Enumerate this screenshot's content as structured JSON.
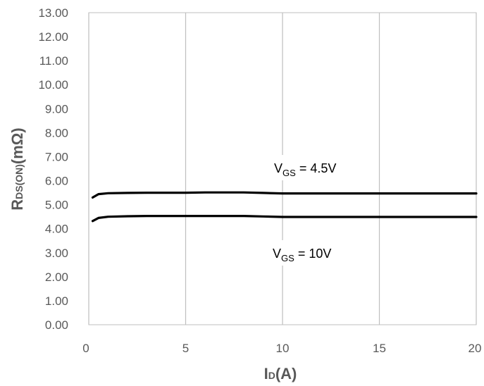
{
  "chart_data": {
    "type": "line",
    "xlabel": {
      "main": "I",
      "sub": "D",
      "rest": "(A)"
    },
    "ylabel": {
      "main": "R",
      "sub": "DS(ON)",
      "rest": "(mΩ)"
    },
    "xlim": [
      0,
      20
    ],
    "ylim": [
      0,
      13
    ],
    "x_ticks": [
      0,
      5,
      10,
      15,
      20
    ],
    "x_tick_labels": [
      "0",
      "5",
      "10",
      "15",
      "20"
    ],
    "y_ticks": [
      0,
      1,
      2,
      3,
      4,
      5,
      6,
      7,
      8,
      9,
      10,
      11,
      12,
      13
    ],
    "y_tick_labels": [
      "0.00",
      "1.00",
      "2.00",
      "3.00",
      "4.00",
      "5.00",
      "6.00",
      "7.00",
      "8.00",
      "9.00",
      "10.00",
      "11.00",
      "12.00",
      "13.00"
    ],
    "grid": {
      "x": true,
      "y": false
    },
    "colors": {
      "line": "#000000",
      "grid": "#bfbfbf",
      "text": "#595959"
    },
    "series": [
      {
        "x": [
          0.2,
          0.5,
          1,
          2,
          3,
          4,
          5,
          6,
          7,
          8,
          9,
          10,
          11,
          12,
          13,
          14,
          15,
          16,
          17,
          18,
          19,
          20
        ],
        "y": [
          5.3,
          5.44,
          5.48,
          5.49,
          5.5,
          5.5,
          5.5,
          5.51,
          5.51,
          5.51,
          5.49,
          5.47,
          5.47,
          5.47,
          5.47,
          5.47,
          5.47,
          5.47,
          5.47,
          5.47,
          5.47,
          5.47
        ]
      },
      {
        "x": [
          0.2,
          0.5,
          1,
          2,
          3,
          4,
          5,
          6,
          7,
          8,
          9,
          10,
          11,
          12,
          13,
          14,
          15,
          16,
          17,
          18,
          19,
          20
        ],
        "y": [
          4.32,
          4.45,
          4.5,
          4.52,
          4.53,
          4.53,
          4.53,
          4.53,
          4.53,
          4.53,
          4.51,
          4.49,
          4.49,
          4.49,
          4.49,
          4.49,
          4.49,
          4.49,
          4.49,
          4.49,
          4.49,
          4.49
        ]
      }
    ],
    "annotations": [
      {
        "main": "V",
        "sub": "GS",
        "rest": " = 4.5V"
      },
      {
        "main": "V",
        "sub": "GS",
        "rest": " = 10V"
      }
    ]
  }
}
